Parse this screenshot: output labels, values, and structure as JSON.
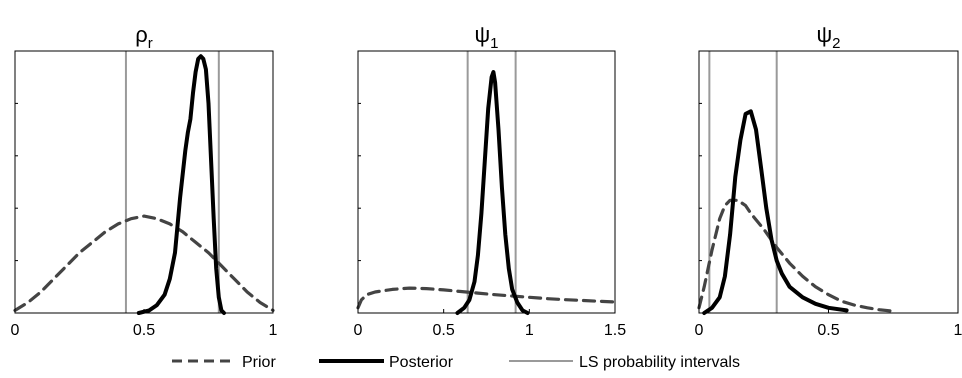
{
  "colors": {
    "prior": "#444444",
    "posterior": "#000000",
    "interval": "#9a9a9a",
    "axis": "#000000"
  },
  "legend": {
    "prior": "Prior",
    "posterior": "Posterior",
    "interval": "LS probability intervals"
  },
  "chart_data": [
    {
      "type": "line",
      "title": "ρ",
      "title_sub": "r",
      "xlim": [
        0,
        1
      ],
      "ylim": [
        0,
        1
      ],
      "xticks": [
        0,
        0.5,
        1
      ],
      "xtick_labels": [
        "0",
        "0.5",
        "1"
      ],
      "intervals": [
        0.43,
        0.79
      ],
      "series": [
        {
          "name": "Prior",
          "style": "dashed",
          "x": [
            0.0,
            0.05,
            0.1,
            0.15,
            0.2,
            0.25,
            0.3,
            0.35,
            0.4,
            0.45,
            0.5,
            0.55,
            0.6,
            0.65,
            0.7,
            0.75,
            0.8,
            0.85,
            0.9,
            0.95,
            1.0
          ],
          "y": [
            0.01,
            0.04,
            0.08,
            0.13,
            0.18,
            0.23,
            0.27,
            0.31,
            0.34,
            0.36,
            0.37,
            0.36,
            0.34,
            0.31,
            0.27,
            0.23,
            0.18,
            0.13,
            0.08,
            0.04,
            0.01
          ]
        },
        {
          "name": "Posterior",
          "style": "solid",
          "x": [
            0.48,
            0.52,
            0.55,
            0.58,
            0.6,
            0.62,
            0.64,
            0.66,
            0.67,
            0.68,
            0.69,
            0.7,
            0.71,
            0.72,
            0.73,
            0.74,
            0.75,
            0.76,
            0.77,
            0.78,
            0.79,
            0.8,
            0.81
          ],
          "y": [
            0.0,
            0.01,
            0.03,
            0.07,
            0.13,
            0.23,
            0.44,
            0.62,
            0.69,
            0.74,
            0.84,
            0.92,
            0.97,
            0.98,
            0.97,
            0.93,
            0.8,
            0.58,
            0.36,
            0.17,
            0.06,
            0.01,
            0.0
          ]
        }
      ]
    },
    {
      "type": "line",
      "title": "ψ",
      "title_sub": "1",
      "xlim": [
        0,
        1.5
      ],
      "ylim": [
        0,
        1
      ],
      "xticks": [
        0,
        0.5,
        1,
        1.5
      ],
      "xtick_labels": [
        "0",
        "0.5",
        "1",
        "1.5"
      ],
      "intervals": [
        0.64,
        0.92
      ],
      "series": [
        {
          "name": "Prior",
          "style": "dashed",
          "x": [
            0.0,
            0.02,
            0.05,
            0.1,
            0.2,
            0.3,
            0.4,
            0.5,
            0.6,
            0.7,
            0.8,
            0.9,
            1.0,
            1.1,
            1.2,
            1.3,
            1.4,
            1.5
          ],
          "y": [
            0.02,
            0.05,
            0.07,
            0.08,
            0.09,
            0.095,
            0.093,
            0.088,
            0.082,
            0.076,
            0.07,
            0.065,
            0.06,
            0.055,
            0.051,
            0.048,
            0.045,
            0.042
          ]
        },
        {
          "name": "Posterior",
          "style": "solid",
          "x": [
            0.58,
            0.62,
            0.65,
            0.68,
            0.7,
            0.72,
            0.74,
            0.76,
            0.78,
            0.79,
            0.8,
            0.82,
            0.84,
            0.86,
            0.88,
            0.9,
            0.93,
            0.96,
            0.99
          ],
          "y": [
            0.0,
            0.02,
            0.05,
            0.12,
            0.22,
            0.38,
            0.58,
            0.78,
            0.9,
            0.92,
            0.88,
            0.7,
            0.48,
            0.3,
            0.17,
            0.09,
            0.04,
            0.01,
            0.0
          ]
        }
      ]
    },
    {
      "type": "line",
      "title": "ψ",
      "title_sub": "2",
      "xlim": [
        0,
        1
      ],
      "ylim": [
        0,
        1
      ],
      "xticks": [
        0,
        0.5,
        1
      ],
      "xtick_labels": [
        "0",
        "0.5",
        "1"
      ],
      "intervals": [
        0.04,
        0.3
      ],
      "series": [
        {
          "name": "Prior",
          "style": "dashed",
          "x": [
            0.0,
            0.02,
            0.05,
            0.08,
            0.1,
            0.12,
            0.15,
            0.18,
            0.2,
            0.25,
            0.3,
            0.35,
            0.4,
            0.45,
            0.5,
            0.55,
            0.6,
            0.65,
            0.7,
            0.74
          ],
          "y": [
            0.02,
            0.1,
            0.24,
            0.36,
            0.41,
            0.43,
            0.43,
            0.41,
            0.38,
            0.32,
            0.25,
            0.19,
            0.14,
            0.1,
            0.07,
            0.045,
            0.03,
            0.02,
            0.012,
            0.008
          ]
        },
        {
          "name": "Posterior",
          "style": "solid",
          "x": [
            0.02,
            0.05,
            0.08,
            0.1,
            0.12,
            0.14,
            0.16,
            0.18,
            0.2,
            0.22,
            0.24,
            0.26,
            0.28,
            0.3,
            0.32,
            0.35,
            0.4,
            0.45,
            0.5,
            0.57
          ],
          "y": [
            0.0,
            0.02,
            0.06,
            0.14,
            0.3,
            0.52,
            0.66,
            0.76,
            0.77,
            0.7,
            0.55,
            0.4,
            0.28,
            0.2,
            0.15,
            0.1,
            0.06,
            0.035,
            0.02,
            0.01
          ]
        }
      ]
    }
  ]
}
